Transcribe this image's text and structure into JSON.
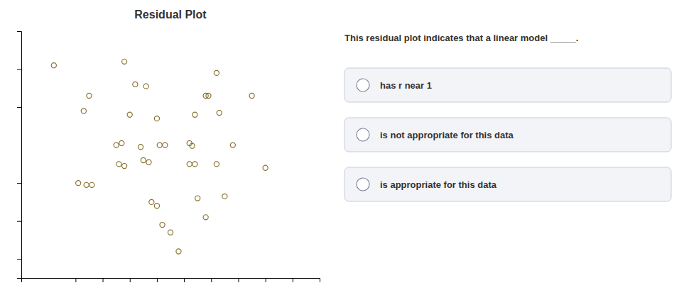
{
  "chart_data": {
    "type": "scatter",
    "title": "Residual Plot",
    "x": [
      1.2,
      3.8,
      7.2,
      2.5,
      4.2,
      4.6,
      6.8,
      6.9,
      8.5,
      2.3,
      4.0,
      5.0,
      6.4,
      7.3,
      3.5,
      3.7,
      4.4,
      5.1,
      5.3,
      6.2,
      6.3,
      7.8,
      3.6,
      3.8,
      4.5,
      4.7,
      6.2,
      6.4,
      7.2,
      9.0,
      2.1,
      2.4,
      2.6,
      4.8,
      5.0,
      6.5,
      7.5,
      5.2,
      5.5,
      6.8,
      5.8
    ],
    "values": [
      2.1,
      2.2,
      1.9,
      1.3,
      1.6,
      1.55,
      1.3,
      1.3,
      1.3,
      0.9,
      0.8,
      0.7,
      0.8,
      0.85,
      0.0,
      0.05,
      -0.05,
      0.0,
      0.0,
      0.05,
      -0.02,
      0.0,
      -0.5,
      -0.55,
      -0.4,
      -0.45,
      -0.5,
      -0.5,
      -0.5,
      -0.6,
      -1.0,
      -1.05,
      -1.05,
      -1.5,
      -1.6,
      -1.4,
      -1.35,
      -2.1,
      -2.3,
      -1.9,
      -2.8
    ],
    "color": "#8a7030",
    "marker": "circle",
    "xlim": [
      0,
      11
    ],
    "ylim": [
      -3.5,
      3.0
    ],
    "xticks": [
      2,
      3,
      4,
      5,
      6,
      7,
      8,
      9,
      10
    ],
    "yticks": [
      -3,
      -2,
      -1,
      1,
      2
    ],
    "tick_labels": false,
    "grid": false,
    "annotations": [
      "This residual plot indicates that a linear model _____.",
      "has r near 1",
      "is not appropriate for this data",
      "is appropriate for this data"
    ]
  }
}
